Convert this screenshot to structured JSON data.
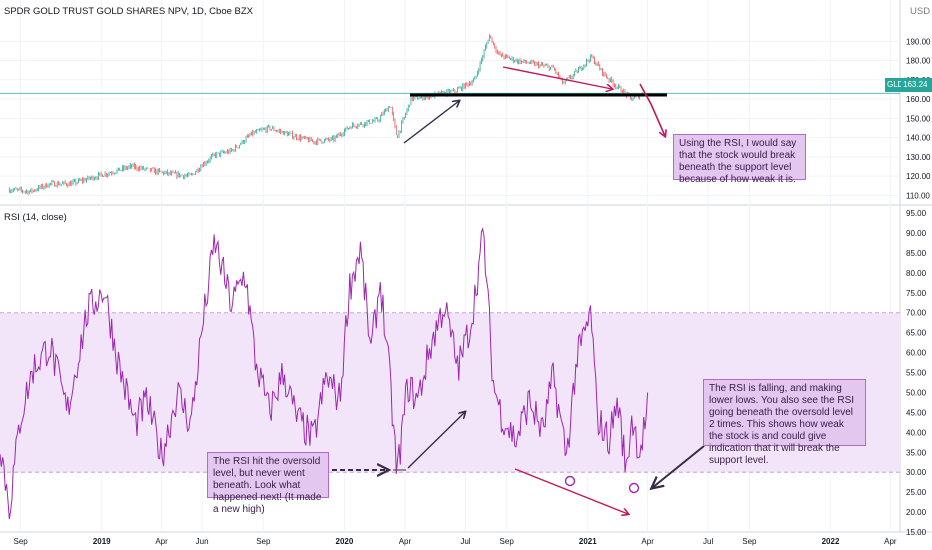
{
  "header": {
    "title": "SPDR GOLD TRUST GOLD SHARES NPV, 1D, Cboe BZX",
    "currency": "USD",
    "rsi_title": "RSI (14, close)",
    "price_tag_symbol": "GLD",
    "price_tag_value": "163.24"
  },
  "notes": {
    "support": "Using the RSI, I would say that the stock would break beneath the support level because of how weak it is.",
    "oversold": "The RSI hit the oversold level, but never went beneath.  Look what happened next! (It made a new high)",
    "falling": "The RSI is falling, and making lower lows. You also see the RSI going beneath the oversold level 2 times. This shows how weak the stock is and could give indication that it will break the support level."
  },
  "colors": {
    "line": "#9c27b0",
    "band": "#f3e5f9",
    "arrow_dark": "#3a2a4a",
    "arrow_red": "#c2185b",
    "up": "#26a69a",
    "down": "#ef5350"
  },
  "chart_data": [
    {
      "type": "line",
      "title": "SPDR GOLD TRUST GOLD SHARES NPV, 1D, Cboe BZX",
      "ylabel": "USD",
      "ylim": [
        105,
        200
      ],
      "y_ticks": [
        "110.00",
        "120.00",
        "130.00",
        "140.00",
        "150.00",
        "160.00",
        "170.00",
        "180.00",
        "190.00"
      ],
      "x_ticks": [
        "Sep",
        "2019",
        "Apr",
        "Jun",
        "Sep",
        "2020",
        "Apr",
        "Jul",
        "Sep",
        "2021",
        "Apr",
        "Jul",
        "Sep",
        "2022",
        "Apr"
      ],
      "series": [
        {
          "x": [
            "2018-08-15",
            "2018-09-15",
            "2018-10-15",
            "2018-11-15",
            "2018-12-15",
            "2019-01-15",
            "2019-02-15",
            "2019-03-15",
            "2019-04-15",
            "2019-05-15",
            "2019-06-01",
            "2019-06-20",
            "2019-07-15",
            "2019-08-15",
            "2019-09-10",
            "2019-10-15",
            "2019-11-15",
            "2019-12-15",
            "2020-01-10",
            "2020-02-20",
            "2020-03-10",
            "2020-03-20",
            "2020-04-10",
            "2020-05-15",
            "2020-06-15",
            "2020-07-15",
            "2020-08-06",
            "2020-08-20",
            "2020-09-15",
            "2020-10-15",
            "2020-11-10",
            "2020-11-25",
            "2020-12-15",
            "2021-01-06",
            "2021-01-25",
            "2021-02-15",
            "2021-03-08",
            "2021-03-25"
          ],
          "values": [
            113,
            112,
            116,
            116,
            119,
            122,
            125,
            123,
            121,
            120,
            126,
            131,
            133,
            142,
            145,
            141,
            138,
            139,
            146,
            149,
            157,
            140,
            160,
            162,
            164,
            170,
            193,
            183,
            180,
            178,
            176,
            168,
            174,
            182,
            173,
            166,
            160,
            163
          ]
        }
      ]
    },
    {
      "type": "line",
      "title": "RSI (14, close)",
      "ylim": [
        15,
        95
      ],
      "y_ticks": [
        "15.00",
        "20.00",
        "25.00",
        "30.00",
        "35.00",
        "40.00",
        "45.00",
        "50.00",
        "55.00",
        "60.00",
        "65.00",
        "70.00",
        "75.00",
        "80.00",
        "85.00",
        "90.00",
        "95.00"
      ],
      "bands": {
        "overbought": 70,
        "oversold": 30
      },
      "series": [
        {
          "x": [
            "2018-08-01",
            "2018-08-15",
            "2018-09-01",
            "2018-09-20",
            "2018-10-15",
            "2018-11-10",
            "2018-12-10",
            "2019-01-05",
            "2019-01-25",
            "2019-02-20",
            "2019-03-10",
            "2019-04-01",
            "2019-04-25",
            "2019-05-15",
            "2019-06-01",
            "2019-06-20",
            "2019-07-15",
            "2019-08-05",
            "2019-08-20",
            "2019-09-10",
            "2019-10-01",
            "2019-10-20",
            "2019-11-15",
            "2019-12-05",
            "2019-12-25",
            "2020-01-08",
            "2020-01-25",
            "2020-02-10",
            "2020-02-24",
            "2020-03-10",
            "2020-03-20",
            "2020-04-05",
            "2020-04-20",
            "2020-05-10",
            "2020-05-30",
            "2020-06-20",
            "2020-07-10",
            "2020-07-28",
            "2020-08-12",
            "2020-08-25",
            "2020-09-15",
            "2020-10-05",
            "2020-10-25",
            "2020-11-10",
            "2020-11-30",
            "2020-12-15",
            "2021-01-06",
            "2021-01-15",
            "2021-02-01",
            "2021-02-15",
            "2021-02-28",
            "2021-03-08",
            "2021-03-20",
            "2021-04-01"
          ],
          "values": [
            38,
            21,
            44,
            56,
            62,
            45,
            70,
            76,
            58,
            42,
            48,
            34,
            50,
            42,
            66,
            88,
            72,
            80,
            58,
            45,
            55,
            44,
            38,
            54,
            48,
            76,
            86,
            60,
            78,
            52,
            29,
            52,
            48,
            62,
            72,
            56,
            68,
            90,
            52,
            44,
            38,
            48,
            40,
            54,
            34,
            58,
            70,
            44,
            38,
            48,
            30,
            44,
            35,
            46
          ]
        }
      ]
    }
  ]
}
